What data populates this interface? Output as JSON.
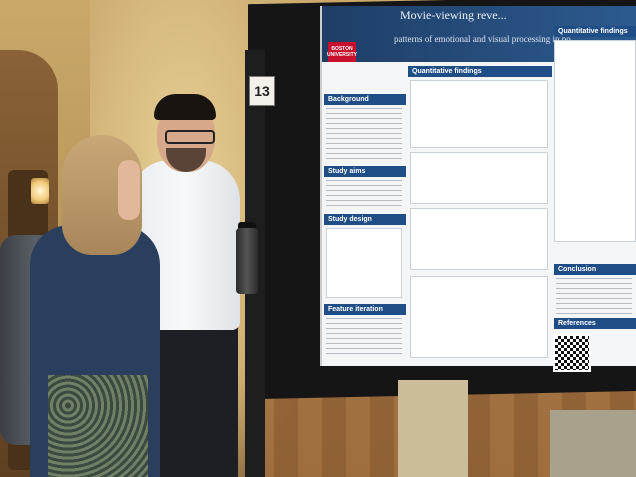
{
  "scene": {
    "board_number": "13",
    "poster": {
      "title_line1": "Movie-viewing reve...",
      "title_line2": "patterns of emotional and visual processing in po...",
      "logo_text": "BOSTON UNIVERSITY",
      "sections": {
        "quantitative_findings_1": "Quantitative findings",
        "quantitative_findings_2": "Quantitative findings",
        "background": "Background",
        "study_aim": "Study aims",
        "study_design": "Study design",
        "feature_iteration": "Feature iteration",
        "conclusion": "Conclusion",
        "references": "References"
      }
    },
    "colors": {
      "poster_header": "#1f3e66",
      "section_header": "#1f4e87",
      "wall": "#c9a86a",
      "logo": "#c8102e"
    }
  }
}
